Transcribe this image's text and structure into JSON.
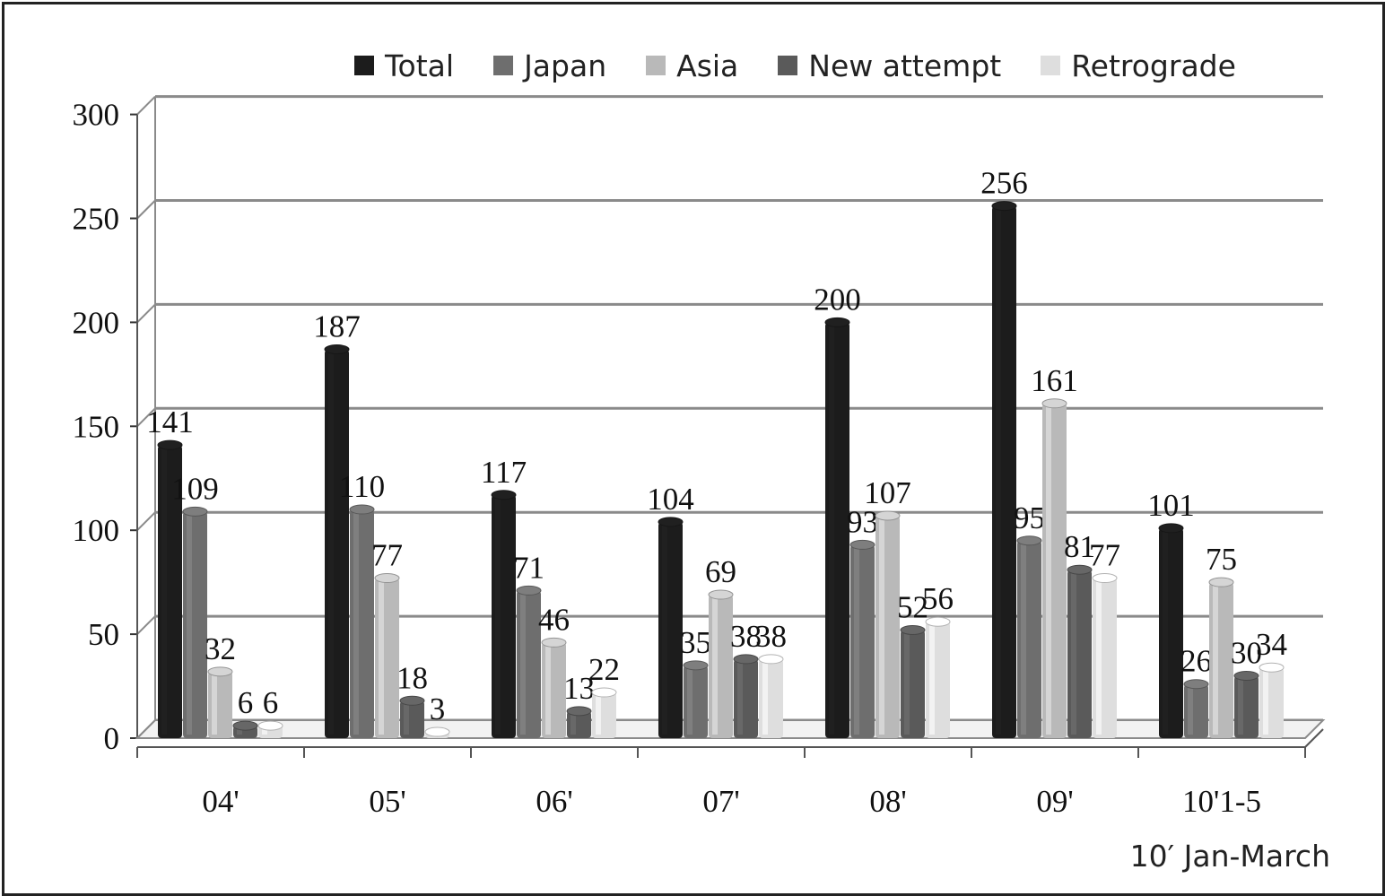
{
  "chart_data": {
    "type": "bar",
    "categories": [
      "04'",
      "05'",
      "06'",
      "07'",
      "08'",
      "09'",
      "10'1-5"
    ],
    "series": [
      {
        "name": "Total",
        "color": "#1c1c1c",
        "values": [
          141,
          187,
          117,
          104,
          200,
          256,
          101
        ]
      },
      {
        "name": "Japan",
        "color": "#6e6e6e",
        "values": [
          109,
          110,
          71,
          35,
          93,
          95,
          26
        ]
      },
      {
        "name": "Asia",
        "color": "#b9b9b9",
        "values": [
          32,
          77,
          46,
          69,
          107,
          161,
          75
        ]
      },
      {
        "name": "New attempt",
        "color": "#5a5a5a",
        "values": [
          6,
          18,
          13,
          38,
          52,
          81,
          30
        ]
      },
      {
        "name": "Retrograde",
        "color": "#dedede",
        "values": [
          6,
          3,
          22,
          38,
          56,
          77,
          34
        ]
      }
    ],
    "y_ticks": [
      0,
      50,
      100,
      150,
      200,
      250,
      300
    ],
    "ylim": [
      0,
      300
    ],
    "grid": true,
    "legend_position": "top",
    "note": "10′ Jan-March"
  }
}
